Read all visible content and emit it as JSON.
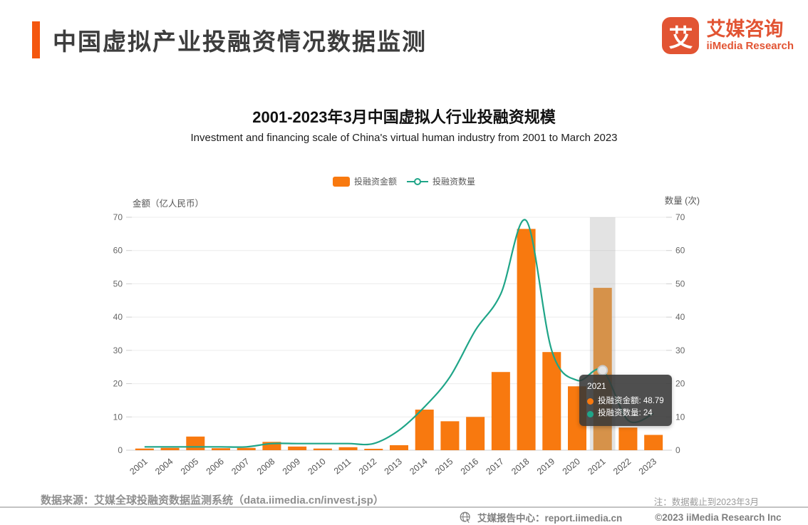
{
  "brand": {
    "accent_color": "#F4570F",
    "logo_color": "#E25433"
  },
  "header": {
    "title": "中国虚拟产业投融资情况数据监测",
    "logo_glyph": "艾",
    "logo_cn": "艾媒咨询",
    "logo_en": "iiMedia Research"
  },
  "chart": {
    "title": "2001-2023年3月中国虚拟人行业投融资规模",
    "subtitle": "Investment and financing scale of China's virtual human industry from 2001 to March 2023",
    "legend": {
      "amount_label": "投融资金额",
      "count_label": "投融资数量"
    }
  },
  "chart_data": {
    "type": "bar",
    "title": "2001-2023年3月中国虚拟人行业投融资规模",
    "subtitle": "Investment and financing scale of China's virtual human industry from 2001 to March 2023",
    "categories": [
      "2001",
      "2004",
      "2005",
      "2006",
      "2007",
      "2008",
      "2009",
      "2010",
      "2011",
      "2012",
      "2013",
      "2014",
      "2015",
      "2016",
      "2017",
      "2018",
      "2019",
      "2020",
      "2021",
      "2022",
      "2023"
    ],
    "series": [
      {
        "name": "投融资金额",
        "kind": "bar",
        "axis": "left",
        "color": "#F8790F",
        "values": [
          0.5,
          0.7,
          4.1,
          0.6,
          0.7,
          2.5,
          1.1,
          0.5,
          0.9,
          0.4,
          1.5,
          12.2,
          8.7,
          10,
          23.5,
          66.5,
          29.5,
          19.2,
          48.79,
          6.8,
          4.6
        ]
      },
      {
        "name": "投融资数量",
        "kind": "line",
        "axis": "right",
        "color": "#1FA588",
        "values": [
          1,
          1,
          1,
          1,
          1,
          2,
          2,
          2,
          2,
          2,
          6,
          13,
          22,
          36,
          47,
          69,
          30,
          21,
          24,
          9,
          11
        ]
      }
    ],
    "y_left": {
      "label": "金额（亿人民币）",
      "min": 0,
      "max": 70,
      "step": 10
    },
    "y_right": {
      "label": "数量 (次)",
      "min": 0,
      "max": 70,
      "step": 10
    },
    "grid": true,
    "legend_position": "top",
    "x_label_rotation": -40,
    "highlight": {
      "index": 18,
      "category": "2021",
      "bar_color": "#D6924A",
      "band_color": "rgba(168,168,168,0.32)",
      "marker_fill": "#E5E5E5",
      "marker_stroke": "#c9c9c9"
    }
  },
  "tooltip": {
    "title": "2021",
    "rows": [
      {
        "text": "投融资金额: 48.79",
        "dot_color": "#F8790F"
      },
      {
        "text": "投融资数量: 24",
        "dot_color": "#1FA588"
      }
    ]
  },
  "footer": {
    "source": "数据来源：艾媒全球投融资数据监测系统（data.iimedia.cn/invest.jsp）",
    "note": "注：数据截止到2023年3月",
    "report_center": "艾媒报告中心：report.iimedia.cn",
    "copyright": "©2023  iiMedia Research  Inc"
  }
}
